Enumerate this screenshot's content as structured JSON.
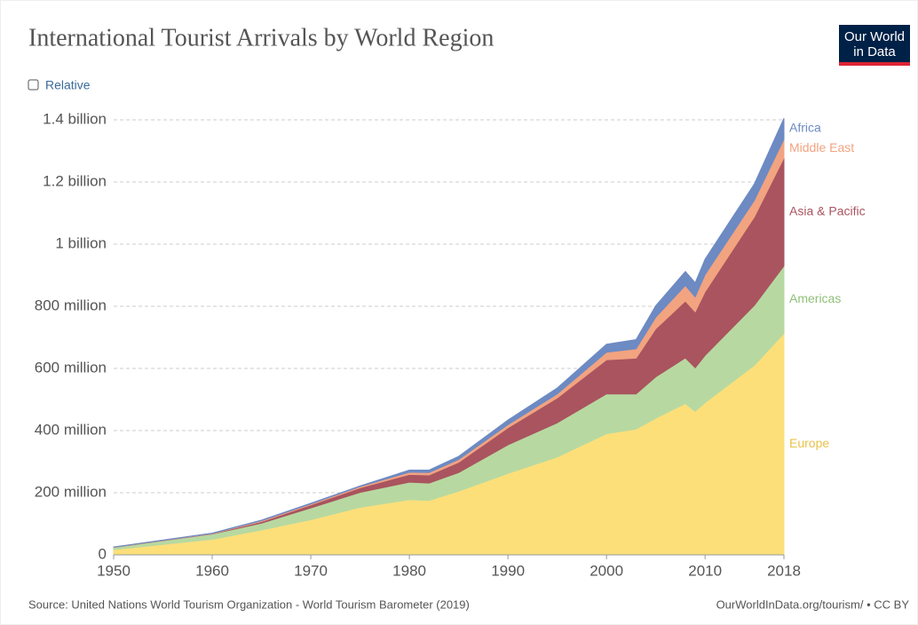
{
  "chart_data": {
    "type": "stacked-area",
    "title": "International Tourist Arrivals by World Region",
    "toggle": "Relative",
    "logo": [
      "Our World",
      "in Data"
    ],
    "source": "Source: United Nations World Tourism Organization - World Tourism Barometer (2019)",
    "url": "OurWorldInData.org/tourism/ • CC BY",
    "x": [
      1950,
      1960,
      1965,
      1970,
      1975,
      1980,
      1982,
      1985,
      1990,
      1995,
      2000,
      2003,
      2005,
      2008,
      2009,
      2010,
      2015,
      2018
    ],
    "xlim": [
      1950,
      2018
    ],
    "xticks": [
      1950,
      1960,
      1970,
      1980,
      1990,
      2000,
      2010,
      2018
    ],
    "ylim": [
      0,
      1400000000
    ],
    "yticks": [
      0,
      {
        "value": 200000000,
        "label": "200 million"
      },
      {
        "value": 400000000,
        "label": "400 million"
      },
      {
        "value": 600000000,
        "label": "600 million"
      },
      {
        "value": 800000000,
        "label": "800 million"
      },
      {
        "value": 1000000000,
        "label": "1 billion"
      },
      {
        "value": 1200000000,
        "label": "1.2 billion"
      },
      {
        "value": 1400000000,
        "label": "1.4 billion"
      }
    ],
    "grid": true,
    "series": [
      {
        "name": "Europe",
        "color": "#fddf7a",
        "values": [
          17000000,
          50000000,
          80000000,
          113000000,
          153000000,
          178000000,
          175000000,
          205000000,
          262000000,
          315000000,
          390000000,
          405000000,
          440000000,
          487000000,
          462000000,
          490000000,
          610000000,
          713000000
        ]
      },
      {
        "name": "Americas",
        "color": "#b7d9a1",
        "values": [
          7000000,
          17000000,
          22000000,
          38000000,
          48000000,
          56000000,
          56000000,
          60000000,
          92000000,
          110000000,
          128000000,
          113000000,
          133000000,
          147000000,
          140000000,
          152000000,
          193000000,
          217000000
        ]
      },
      {
        "name": "Asia & Pacific",
        "color": "#a9545f",
        "values": [
          500000,
          1000000,
          5000000,
          10000000,
          15000000,
          25000000,
          26000000,
          33000000,
          55000000,
          80000000,
          110000000,
          115000000,
          155000000,
          183000000,
          180000000,
          205000000,
          285000000,
          348000000
        ]
      },
      {
        "name": "Middle East",
        "color": "#f2a380",
        "values": [
          200000,
          1000000,
          3000000,
          3000000,
          4000000,
          7000000,
          8000000,
          9000000,
          10000000,
          13000000,
          24000000,
          30000000,
          37000000,
          50000000,
          48000000,
          55000000,
          53000000,
          60000000
        ]
      },
      {
        "name": "Africa",
        "color": "#6d8ac3",
        "values": [
          500000,
          1000000,
          2000000,
          2000000,
          2000000,
          7000000,
          8000000,
          10000000,
          15000000,
          19000000,
          26000000,
          30000000,
          37000000,
          45000000,
          46000000,
          50000000,
          53000000,
          67000000
        ]
      }
    ]
  }
}
